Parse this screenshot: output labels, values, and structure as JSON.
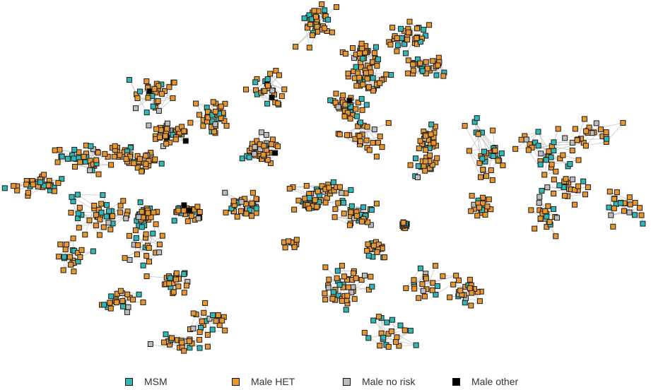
{
  "legend": {
    "items": [
      {
        "label": "MSM",
        "color": "#2fb8b8"
      },
      {
        "label": "Male HET",
        "color": "#e8962e"
      },
      {
        "label": "Male no risk",
        "color": "#bdbdbd"
      },
      {
        "label": "Male other",
        "color": "#000000"
      }
    ]
  },
  "node_style": {
    "stroke": "#1a1a1a",
    "edge": "#c8c8c8"
  },
  "clusters": [
    {
      "id": "c1",
      "mix": [
        0.25,
        0.7,
        0.05,
        0.0
      ],
      "n": 40
    },
    {
      "id": "c2",
      "mix": [
        0.2,
        0.72,
        0.08,
        0.0
      ],
      "n": 34
    },
    {
      "id": "c3",
      "mix": [
        0.18,
        0.76,
        0.05,
        0.01
      ],
      "n": 28
    },
    {
      "id": "c4",
      "mix": [
        0.2,
        0.75,
        0.05,
        0.0
      ],
      "n": 36
    },
    {
      "id": "c5",
      "mix": [
        0.22,
        0.7,
        0.08,
        0.0
      ],
      "n": 32
    },
    {
      "id": "c6",
      "mix": [
        0.15,
        0.78,
        0.05,
        0.02
      ],
      "n": 30
    },
    {
      "id": "c7",
      "mix": [
        0.2,
        0.7,
        0.1,
        0.0
      ],
      "n": 34
    },
    {
      "id": "c8",
      "mix": [
        0.15,
        0.72,
        0.1,
        0.03
      ],
      "n": 26
    },
    {
      "id": "c9",
      "mix": [
        0.2,
        0.72,
        0.06,
        0.02
      ],
      "n": 30
    },
    {
      "id": "c10",
      "mix": [
        0.1,
        0.7,
        0.18,
        0.02
      ],
      "n": 40
    },
    {
      "id": "c11",
      "mix": [
        0.12,
        0.82,
        0.05,
        0.01
      ],
      "n": 26
    },
    {
      "id": "c12",
      "mix": [
        0.15,
        0.78,
        0.05,
        0.02
      ],
      "n": 24
    },
    {
      "id": "c13",
      "mix": [
        0.2,
        0.74,
        0.06,
        0.0
      ],
      "n": 22
    },
    {
      "id": "c14",
      "mix": [
        0.08,
        0.75,
        0.12,
        0.05
      ],
      "n": 38
    },
    {
      "id": "c15",
      "mix": [
        0.15,
        0.8,
        0.05,
        0.0
      ],
      "n": 18
    },
    {
      "id": "c16",
      "mix": [
        0.28,
        0.65,
        0.07,
        0.0
      ],
      "n": 36
    },
    {
      "id": "c17",
      "mix": [
        0.22,
        0.7,
        0.08,
        0.0
      ],
      "n": 34
    },
    {
      "id": "c18",
      "mix": [
        0.2,
        0.74,
        0.06,
        0.0
      ],
      "n": 28
    },
    {
      "id": "c19",
      "mix": [
        0.35,
        0.6,
        0.05,
        0.0
      ],
      "n": 40
    },
    {
      "id": "c20",
      "mix": [
        0.3,
        0.65,
        0.05,
        0.0
      ],
      "n": 30
    },
    {
      "id": "c21",
      "mix": [
        0.15,
        0.75,
        0.05,
        0.05
      ],
      "n": 30
    },
    {
      "id": "c22",
      "mix": [
        0.2,
        0.72,
        0.08,
        0.0
      ],
      "n": 34
    },
    {
      "id": "c23",
      "mix": [
        0.25,
        0.65,
        0.1,
        0.0
      ],
      "n": 38
    },
    {
      "id": "c24",
      "mix": [
        0.2,
        0.72,
        0.08,
        0.0
      ],
      "n": 30
    },
    {
      "id": "c25",
      "mix": [
        0.28,
        0.66,
        0.06,
        0.0
      ],
      "n": 34
    },
    {
      "id": "c26",
      "mix": [
        0.3,
        0.65,
        0.05,
        0.0
      ],
      "n": 36
    },
    {
      "id": "c27",
      "mix": [
        0.15,
        0.8,
        0.05,
        0.0
      ],
      "n": 12
    }
  ]
}
